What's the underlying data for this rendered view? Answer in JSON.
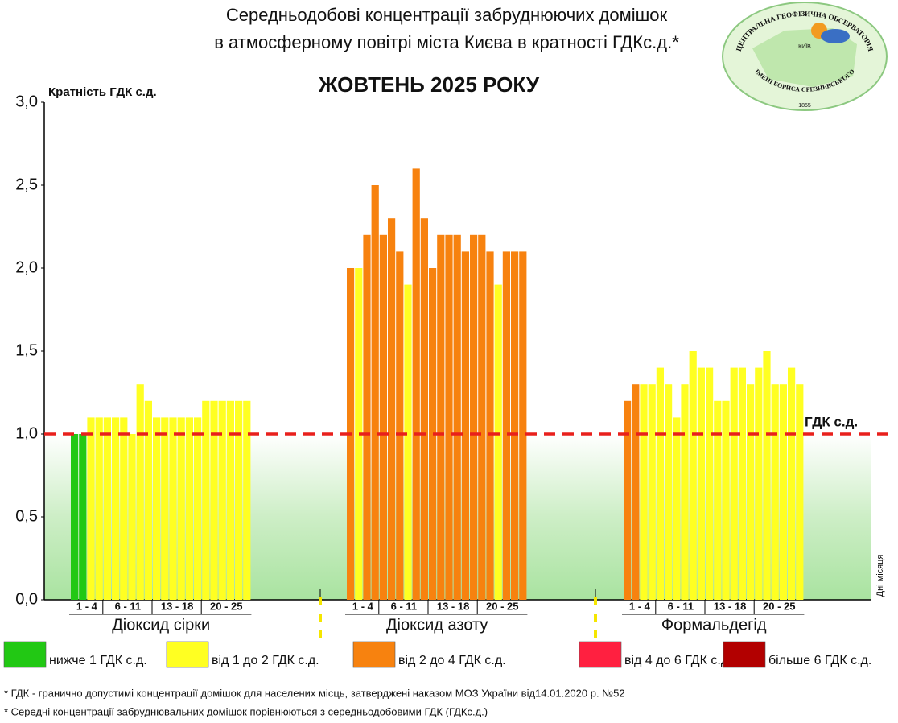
{
  "chart_data": {
    "type": "bar",
    "title_lines": [
      "Середньодобові концентрації забруднюючих домішок",
      "в атмосферному повітрі міста Києва в кратності ГДКс.д.*"
    ],
    "subtitle": "ЖОВТЕНЬ 2025 РОКУ",
    "y_label": "Кратність ГДК с.д.",
    "x_label": "Дні місяця",
    "day_groups": [
      "1 - 4",
      "6 - 11",
      "13 - 18",
      "20 - 25"
    ],
    "ylim": [
      0,
      3
    ],
    "yticks": [
      {
        "value": 0,
        "label": "0,0"
      },
      {
        "value": 0.5,
        "label": "0,5"
      },
      {
        "value": 1,
        "label": "1,0"
      },
      {
        "value": 1.5,
        "label": "1,5"
      },
      {
        "value": 2,
        "label": "2,0"
      },
      {
        "value": 2.5,
        "label": "2,5"
      },
      {
        "value": 3,
        "label": "3,0"
      }
    ],
    "threshold": 1,
    "threshold_label": "ГДК с.д.",
    "threshold_color": "#e8201c",
    "series": [
      {
        "name": "Діоксид сірки",
        "values": [
          1.0,
          1.0,
          1.1,
          1.1,
          1.1,
          1.1,
          1.1,
          1.0,
          1.3,
          1.2,
          1.1,
          1.1,
          1.1,
          1.1,
          1.1,
          1.1,
          1.2,
          1.2,
          1.2,
          1.2,
          1.2,
          1.2
        ],
        "colors": [
          "#22c814",
          "#22c814",
          "#ffff22",
          "#ffff22",
          "#ffff22",
          "#ffff22",
          "#ffff22",
          "#ffff22",
          "#ffff22",
          "#ffff22",
          "#ffff22",
          "#ffff22",
          "#ffff22",
          "#ffff22",
          "#ffff22",
          "#ffff22",
          "#ffff22",
          "#ffff22",
          "#ffff22",
          "#ffff22",
          "#ffff22",
          "#ffff22"
        ]
      },
      {
        "name": "Діоксид азоту",
        "values": [
          2.0,
          2.0,
          2.2,
          2.5,
          2.2,
          2.3,
          2.1,
          1.9,
          2.6,
          2.3,
          2.0,
          2.2,
          2.2,
          2.2,
          2.1,
          2.2,
          2.2,
          2.1,
          1.9,
          2.1,
          2.1,
          2.1
        ],
        "colors": [
          "#f7820f",
          "#ffff22",
          "#f7820f",
          "#f7820f",
          "#f7820f",
          "#f7820f",
          "#f7820f",
          "#ffff22",
          "#f7820f",
          "#f7820f",
          "#f7820f",
          "#f7820f",
          "#f7820f",
          "#f7820f",
          "#f7820f",
          "#f7820f",
          "#f7820f",
          "#f7820f",
          "#ffff22",
          "#f7820f",
          "#f7820f",
          "#f7820f"
        ]
      },
      {
        "name": "Формальдегід",
        "values": [
          1.2,
          1.3,
          1.3,
          1.3,
          1.4,
          1.3,
          1.1,
          1.3,
          1.5,
          1.4,
          1.4,
          1.2,
          1.2,
          1.4,
          1.4,
          1.3,
          1.4,
          1.5,
          1.3,
          1.3,
          1.4,
          1.3
        ],
        "colors": [
          "#f7820f",
          "#f7820f",
          "#ffff22",
          "#ffff22",
          "#ffff22",
          "#ffff22",
          "#ffff22",
          "#ffff22",
          "#ffff22",
          "#ffff22",
          "#ffff22",
          "#ffff22",
          "#ffff22",
          "#ffff22",
          "#ffff22",
          "#ffff22",
          "#ffff22",
          "#ffff22",
          "#ffff22",
          "#ffff22",
          "#ffff22",
          "#ffff22"
        ]
      }
    ],
    "legend": [
      {
        "label": "нижче 1 ГДК с.д.",
        "color": "#22c814"
      },
      {
        "label": "від 1 до 2 ГДК с.д.",
        "color": "#ffff22"
      },
      {
        "label": "від 2 до 4 ГДК с.д.",
        "color": "#f7820f"
      },
      {
        "label": "від 4 до 6 ГДК с.д.",
        "color": "#ff2040"
      },
      {
        "label": "більше 6 ГДК с.д.",
        "color": "#b20000"
      }
    ]
  },
  "footnotes": [
    "* ГДК - гранично допустимі концентрації домішок для населених місць, затверджені наказом МОЗ України від14.01.2020 р. №52",
    "* Середні концентрації забруднювальних домішок порівнюються з середньодобовими  ГДК (ГДКс.д.)"
  ],
  "logo": {
    "top": "ЦЕНТРАЛЬНА ГЕОФІЗИЧНА ОБСЕРВАТОРІЯ",
    "city": "КИЇВ",
    "bottom": "ІМЕНІ БОРИСА СРЕЗНЕВСЬКОГО",
    "year": "1855"
  }
}
